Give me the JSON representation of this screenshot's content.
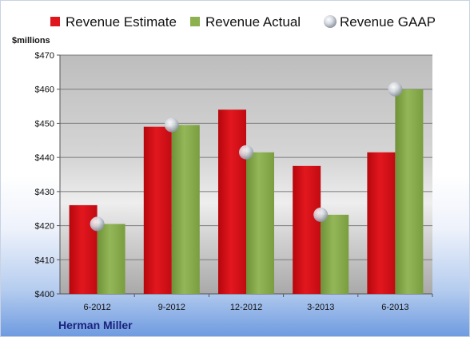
{
  "chart_data": {
    "type": "bar",
    "unit_label": "$millions",
    "company": "Herman Miller",
    "categories": [
      "6-2012",
      "9-2012",
      "12-2012",
      "3-2013",
      "6-2013"
    ],
    "series": [
      {
        "name": "Revenue Estimate",
        "kind": "bar",
        "color": "#e0161d",
        "values": [
          426,
          449,
          454,
          437.5,
          441.5
        ]
      },
      {
        "name": "Revenue Actual",
        "kind": "bar",
        "color": "#8cb14e",
        "values": [
          420.5,
          449.5,
          441.5,
          423.2,
          460
        ]
      },
      {
        "name": "Revenue GAAP",
        "kind": "marker",
        "color": "#c4c9d3",
        "values": [
          420.5,
          449.5,
          441.5,
          423.2,
          460
        ]
      }
    ],
    "ylim": [
      400,
      470
    ],
    "yticks": [
      400,
      410,
      420,
      430,
      440,
      450,
      460,
      470
    ],
    "ytick_labels": [
      "$400",
      "$410",
      "$420",
      "$430",
      "$440",
      "$450",
      "$460",
      "$470"
    ],
    "grid": true,
    "legend_position": "top"
  }
}
